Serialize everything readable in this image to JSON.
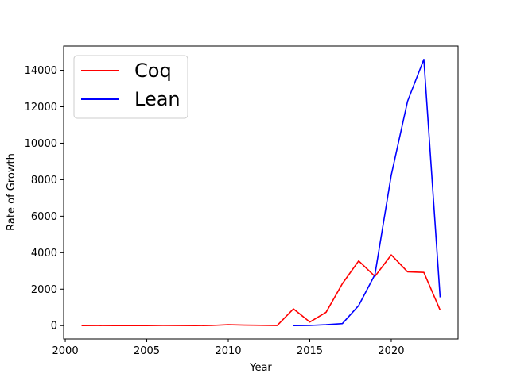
{
  "chart_data": {
    "type": "line",
    "title": "",
    "xlabel": "Year",
    "ylabel": "Rate of Growth",
    "xlim": [
      1999.9,
      2024.1
    ],
    "ylim": [
      -730,
      15330
    ],
    "xticks": [
      2000,
      2005,
      2010,
      2015,
      2020
    ],
    "xtick_labels": [
      "2000",
      "2005",
      "2010",
      "2015",
      "2020"
    ],
    "yticks": [
      0,
      2000,
      4000,
      6000,
      8000,
      10000,
      12000,
      14000
    ],
    "ytick_labels": [
      "0",
      "2000",
      "4000",
      "6000",
      "8000",
      "10000",
      "12000",
      "14000"
    ],
    "grid": false,
    "legend_position": "top-left",
    "series": [
      {
        "name": "Coq",
        "color": "#ff0000",
        "x": [
          2001,
          2002,
          2003,
          2004,
          2005,
          2006,
          2007,
          2008,
          2009,
          2010,
          2011,
          2012,
          2013,
          2014,
          2015,
          2016,
          2017,
          2018,
          2019,
          2020,
          2021,
          2022,
          2023
        ],
        "y": [
          0,
          5,
          0,
          0,
          0,
          10,
          5,
          0,
          10,
          50,
          30,
          20,
          5,
          920,
          200,
          730,
          2300,
          3550,
          2700,
          3880,
          2950,
          2920,
          850
        ]
      },
      {
        "name": "Lean",
        "color": "#0000ff",
        "x": [
          2014,
          2015,
          2016,
          2017,
          2018,
          2019,
          2020,
          2021,
          2022,
          2023
        ],
        "y": [
          0,
          10,
          50,
          110,
          1100,
          2800,
          8250,
          12300,
          14600,
          1550
        ]
      }
    ]
  }
}
